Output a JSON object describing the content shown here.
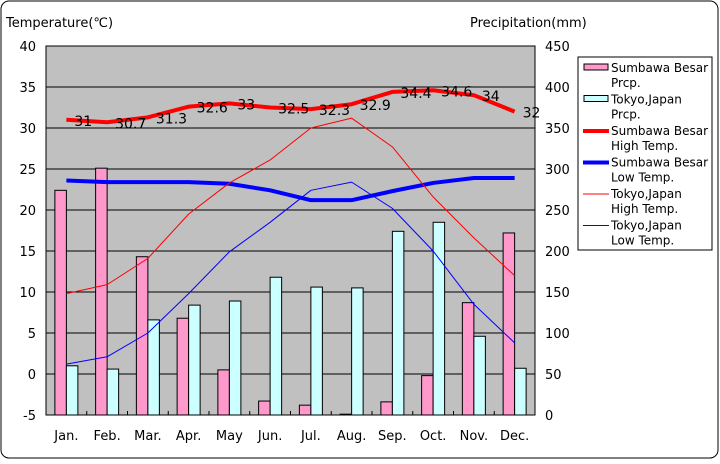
{
  "chart_data": {
    "type": "bar+line",
    "categories": [
      "Jan.",
      "Feb.",
      "Mar.",
      "Apr.",
      "May",
      "Jun.",
      "Jul.",
      "Aug.",
      "Sep.",
      "Oct.",
      "Nov.",
      "Dec."
    ],
    "y_left_label": "Temperature(℃)",
    "y_right_label": "Precipitation(mm)",
    "y_left_range": [
      -5,
      40
    ],
    "y_left_ticks": [
      "-5",
      "0",
      "5",
      "10",
      "15",
      "20",
      "25",
      "30",
      "35",
      "40"
    ],
    "y_right_range": [
      0,
      450
    ],
    "y_right_ticks": [
      "0",
      "50",
      "100",
      "150",
      "200",
      "250",
      "300",
      "350",
      "400",
      "450"
    ],
    "grid": true,
    "legend_position": "right",
    "bars": [
      {
        "name": "Sumbawa Besar Prcp.",
        "name_lines": [
          "Sumbawa Besar",
          "Prcp."
        ],
        "color": "#ff99cc",
        "values": [
          274,
          301,
          193,
          118,
          55,
          17,
          12,
          1,
          16,
          48,
          137,
          222
        ]
      },
      {
        "name": "Tokyo,Japan Prcp.",
        "name_lines": [
          "Tokyo,Japan",
          "Prcp."
        ],
        "color": "#ccffff",
        "values": [
          60,
          56,
          116,
          134,
          139,
          168,
          156,
          155,
          224,
          235,
          96,
          57
        ]
      }
    ],
    "lines": [
      {
        "name": "Sumbawa Besar High Temp.",
        "name_lines": [
          "Sumbawa Besar",
          "High Temp."
        ],
        "color": "#ff0000",
        "width": 4,
        "labels": true,
        "values": [
          31,
          30.7,
          31.3,
          32.6,
          33,
          32.5,
          32.3,
          32.9,
          34.4,
          34.6,
          34,
          32
        ],
        "value_labels": [
          "31",
          "30.7",
          "31.3",
          "32.6",
          "33",
          "32.5",
          "32.3",
          "32.9",
          "34.4",
          "34.6",
          "34",
          "32"
        ]
      },
      {
        "name": "Sumbawa Besar Low Temp.",
        "name_lines": [
          "Sumbawa Besar",
          "Low Temp."
        ],
        "color": "#0000ff",
        "width": 4,
        "labels": false,
        "values": [
          23.6,
          23.4,
          23.4,
          23.4,
          23.2,
          22.4,
          21.2,
          21.2,
          22.3,
          23.3,
          23.9,
          23.9
        ]
      },
      {
        "name": "Tokyo,Japan High Temp.",
        "name_lines": [
          "Tokyo,Japan",
          "High Temp."
        ],
        "color": "#ff0000",
        "width": 1,
        "labels": false,
        "values": [
          9.8,
          10.9,
          14.1,
          19.5,
          23.3,
          26.1,
          30.0,
          31.2,
          27.7,
          21.6,
          16.6,
          12.0
        ]
      },
      {
        "name": "Tokyo,Japan Low Temp.",
        "name_lines": [
          "Tokyo,Japan",
          "Low Temp."
        ],
        "color": "#0000ff",
        "width": 1,
        "labels": false,
        "values": [
          1.2,
          2.1,
          5.0,
          9.8,
          14.9,
          18.5,
          22.4,
          23.4,
          20.2,
          15.0,
          8.5,
          3.8
        ]
      }
    ]
  }
}
